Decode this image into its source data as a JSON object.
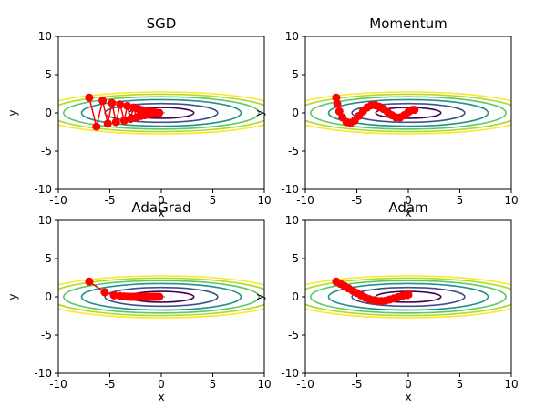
{
  "chart_data": [
    {
      "type": "line",
      "title": "SGD",
      "xlabel": "x",
      "ylabel": "y",
      "xlim": [
        -10,
        10
      ],
      "ylim": [
        -10,
        10
      ],
      "xticks": [
        -10,
        -5,
        0,
        5,
        10
      ],
      "yticks": [
        -10,
        -5,
        0,
        5,
        10
      ],
      "contour_function": "x^2/20 + y^2",
      "contour_levels": [
        0.5,
        1.5,
        3,
        4.5,
        6,
        7.5
      ],
      "minimum_marker": [
        0,
        0
      ],
      "series": [
        {
          "color": "#ff0000",
          "x": [
            -7.0,
            -6.3,
            -5.7,
            -5.2,
            -4.8,
            -4.4,
            -4.0,
            -3.6,
            -3.3,
            -3.0,
            -2.7,
            -2.4,
            -2.2,
            -2.0,
            -1.8,
            -1.6,
            -1.4,
            -1.2,
            -1.0,
            -0.8,
            -0.6,
            -0.4,
            -0.2
          ],
          "y": [
            2.0,
            -1.8,
            1.6,
            -1.4,
            1.3,
            -1.2,
            1.1,
            -1.0,
            0.9,
            -0.8,
            0.7,
            -0.6,
            0.5,
            -0.4,
            0.35,
            -0.3,
            0.25,
            -0.2,
            0.15,
            -0.1,
            0.08,
            -0.04,
            0.0
          ]
        }
      ]
    },
    {
      "type": "line",
      "title": "Momentum",
      "xlabel": "x",
      "ylabel": "y",
      "xlim": [
        -10,
        10
      ],
      "ylim": [
        -10,
        10
      ],
      "xticks": [
        -10,
        -5,
        0,
        5,
        10
      ],
      "yticks": [
        -10,
        -5,
        0,
        5,
        10
      ],
      "contour_function": "x^2/20 + y^2",
      "contour_levels": [
        0.5,
        1.5,
        3,
        4.5,
        6,
        7.5
      ],
      "minimum_marker": [
        0,
        0
      ],
      "series": [
        {
          "color": "#ff0000",
          "x": [
            -7.0,
            -6.9,
            -6.7,
            -6.4,
            -6.0,
            -5.6,
            -5.2,
            -4.8,
            -4.4,
            -4.0,
            -3.6,
            -3.2,
            -2.8,
            -2.4,
            -2.0,
            -1.6,
            -1.2,
            -0.8,
            -0.4,
            0.0,
            0.4,
            0.6
          ],
          "y": [
            2.0,
            1.2,
            0.2,
            -0.6,
            -1.2,
            -1.3,
            -1.0,
            -0.4,
            0.2,
            0.7,
            1.0,
            1.0,
            0.8,
            0.5,
            0.1,
            -0.3,
            -0.6,
            -0.6,
            -0.3,
            0.1,
            0.4,
            0.4
          ]
        }
      ]
    },
    {
      "type": "line",
      "title": "AdaGrad",
      "xlabel": "x",
      "ylabel": "y",
      "xlim": [
        -10,
        10
      ],
      "ylim": [
        -10,
        10
      ],
      "xticks": [
        -10,
        -5,
        0,
        5,
        10
      ],
      "yticks": [
        -10,
        -5,
        0,
        5,
        10
      ],
      "contour_function": "x^2/20 + y^2",
      "contour_levels": [
        0.5,
        1.5,
        3,
        4.5,
        6,
        7.5
      ],
      "minimum_marker": [
        0,
        0
      ],
      "series": [
        {
          "color": "#ff0000",
          "x": [
            -7.0,
            -5.5,
            -4.6,
            -4.0,
            -3.6,
            -3.3,
            -3.0,
            -2.8,
            -2.6,
            -2.4,
            -2.2,
            -2.0,
            -1.8,
            -1.6,
            -1.4,
            -1.2,
            -1.0,
            -0.8,
            -0.6,
            -0.4,
            -0.2
          ],
          "y": [
            2.0,
            0.6,
            0.2,
            0.1,
            0.05,
            0.02,
            0.0,
            0.0,
            0.0,
            0.0,
            0.0,
            0.0,
            0.0,
            0.0,
            0.0,
            0.0,
            0.0,
            0.0,
            0.0,
            0.0,
            0.0
          ]
        }
      ]
    },
    {
      "type": "line",
      "title": "Adam",
      "xlabel": "x",
      "ylabel": "y",
      "xlim": [
        -10,
        10
      ],
      "ylim": [
        -10,
        10
      ],
      "xticks": [
        -10,
        -5,
        0,
        5,
        10
      ],
      "yticks": [
        -10,
        -5,
        0,
        5,
        10
      ],
      "contour_function": "x^2/20 + y^2",
      "contour_levels": [
        0.5,
        1.5,
        3,
        4.5,
        6,
        7.5
      ],
      "minimum_marker": [
        0,
        0
      ],
      "series": [
        {
          "color": "#ff0000",
          "x": [
            -7.0,
            -6.6,
            -6.2,
            -5.8,
            -5.4,
            -5.0,
            -4.6,
            -4.2,
            -3.8,
            -3.4,
            -3.0,
            -2.6,
            -2.2,
            -1.8,
            -1.4,
            -1.0,
            -0.6,
            -0.2,
            0.0
          ],
          "y": [
            2.0,
            1.7,
            1.4,
            1.1,
            0.8,
            0.5,
            0.2,
            -0.1,
            -0.3,
            -0.45,
            -0.55,
            -0.55,
            -0.5,
            -0.35,
            -0.2,
            -0.05,
            0.1,
            0.25,
            0.3
          ]
        }
      ]
    }
  ]
}
